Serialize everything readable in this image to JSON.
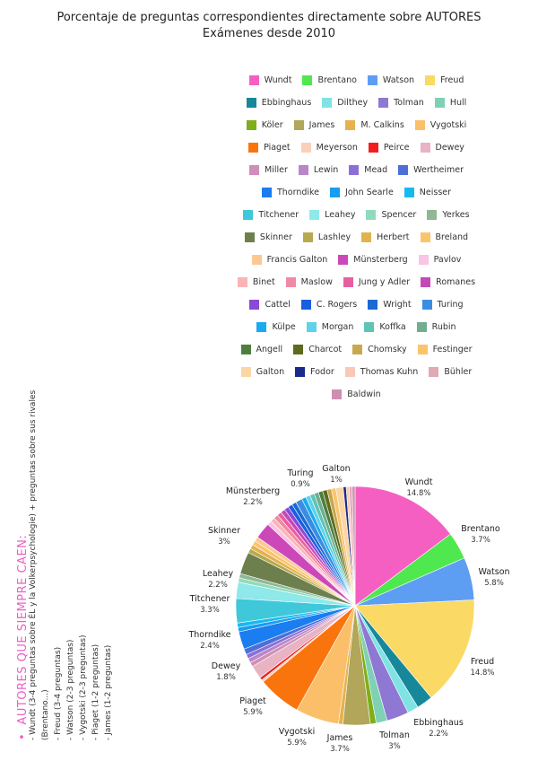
{
  "title": "Porcentaje de preguntas correspondientes directamente sobre AUTORES",
  "subtitle": "Exámenes desde 2010",
  "chart_data": {
    "type": "pie",
    "title": "Porcentaje de preguntas correspondientes directamente sobre AUTORES",
    "subtitle": "Exámenes desde 2010",
    "legend_position": "top-right",
    "slices": [
      {
        "name": "Wundt",
        "value": 14.8,
        "label": "14.8%",
        "color": "#f55fc2"
      },
      {
        "name": "Brentano",
        "value": 3.7,
        "label": "3.7%",
        "color": "#4fe84f"
      },
      {
        "name": "Watson",
        "value": 5.8,
        "label": "5.8%",
        "color": "#5e9ef2"
      },
      {
        "name": "Freud",
        "value": 14.8,
        "label": "14.8%",
        "color": "#fbd965"
      },
      {
        "name": "Ebbinghaus",
        "value": 2.2,
        "label": "2.2%",
        "color": "#17889a"
      },
      {
        "name": "Dilthey",
        "value": 1.5,
        "color": "#7fe3e3"
      },
      {
        "name": "Tolman",
        "value": 3.0,
        "label": "3%",
        "color": "#8f78d4"
      },
      {
        "name": "Hull",
        "value": 1.5,
        "color": "#7fd1b4"
      },
      {
        "name": "Köler",
        "value": 0.8,
        "color": "#7fae1a"
      },
      {
        "name": "James",
        "value": 3.7,
        "label": "3.7%",
        "color": "#b1a659"
      },
      {
        "name": "M. Calkins",
        "value": 0.6,
        "color": "#e5b24d"
      },
      {
        "name": "Vygotski",
        "value": 5.9,
        "label": "5.9%",
        "color": "#fbbf69"
      },
      {
        "name": "Piaget",
        "value": 5.9,
        "label": "5.9%",
        "color": "#fa740e"
      },
      {
        "name": "Meyerson",
        "value": 0.3,
        "color": "#fbcfb8"
      },
      {
        "name": "Peirce",
        "value": 0.4,
        "color": "#f21e1e"
      },
      {
        "name": "Dewey",
        "value": 1.8,
        "label": "1.8%",
        "color": "#e8b3c3"
      },
      {
        "name": "Miller",
        "value": 0.6,
        "color": "#d08fb8"
      },
      {
        "name": "Lewin",
        "value": 0.6,
        "color": "#b886c9"
      },
      {
        "name": "Mead",
        "value": 0.6,
        "color": "#8c6fd6"
      },
      {
        "name": "Wertheimer",
        "value": 0.8,
        "color": "#4c6fd8"
      },
      {
        "name": "Thorndike",
        "value": 2.4,
        "label": "2.4%",
        "color": "#1a7df0"
      },
      {
        "name": "John Searle",
        "value": 0.6,
        "color": "#1a9df0"
      },
      {
        "name": "Neisser",
        "value": 0.6,
        "color": "#17baf0"
      },
      {
        "name": "Titchener",
        "value": 3.3,
        "label": "3.3%",
        "color": "#3fc8d9"
      },
      {
        "name": "Leahey",
        "value": 2.2,
        "label": "2.2%",
        "color": "#8fe8ea"
      },
      {
        "name": "Spencer",
        "value": 0.6,
        "color": "#8fdcbc"
      },
      {
        "name": "Yerkes",
        "value": 0.6,
        "color": "#8fb893"
      },
      {
        "name": "Skinner",
        "value": 3.0,
        "label": "3%",
        "color": "#6e7f4e"
      },
      {
        "name": "Lashley",
        "value": 0.6,
        "color": "#b8a850"
      },
      {
        "name": "Herbert",
        "value": 0.6,
        "color": "#e2b24e"
      },
      {
        "name": "Breland",
        "value": 0.6,
        "color": "#fbc46b"
      },
      {
        "name": "Francis Galton",
        "value": 0.6,
        "color": "#fbc894"
      },
      {
        "name": "Münsterberg",
        "value": 2.2,
        "label": "2.2%",
        "color": "#cc48b8"
      },
      {
        "name": "Pavlov",
        "value": 0.6,
        "color": "#fbc3e6"
      },
      {
        "name": "Binet",
        "value": 0.6,
        "color": "#fbb4b4"
      },
      {
        "name": "Maslow",
        "value": 0.6,
        "color": "#f08aa4"
      },
      {
        "name": "Jung y Adler",
        "value": 0.6,
        "color": "#e85fa0"
      },
      {
        "name": "Romanes",
        "value": 0.6,
        "color": "#c449b8"
      },
      {
        "name": "Cattel",
        "value": 0.6,
        "color": "#8a4ad6"
      },
      {
        "name": "C. Rogers",
        "value": 0.6,
        "color": "#1a5ee0"
      },
      {
        "name": "Wright",
        "value": 0.6,
        "color": "#1a6ad4"
      },
      {
        "name": "Turing",
        "value": 0.9,
        "label": "0.9%",
        "color": "#3a8ee0"
      },
      {
        "name": "Külpe",
        "value": 0.6,
        "color": "#1aaaf0"
      },
      {
        "name": "Morgan",
        "value": 0.6,
        "color": "#5ed2e8"
      },
      {
        "name": "Koffka",
        "value": 0.6,
        "color": "#5ec4b4"
      },
      {
        "name": "Rubin",
        "value": 0.6,
        "color": "#6fae8f"
      },
      {
        "name": "Angell",
        "value": 0.6,
        "color": "#4e7e3e"
      },
      {
        "name": "Charcot",
        "value": 0.6,
        "color": "#5e6a1e"
      },
      {
        "name": "Chomsky",
        "value": 0.6,
        "color": "#c8a84e"
      },
      {
        "name": "Festinger",
        "value": 0.6,
        "color": "#fbc46b"
      },
      {
        "name": "Galton",
        "value": 1.0,
        "label": "1%",
        "color": "#fbd6a4"
      },
      {
        "name": "Fodor",
        "value": 0.4,
        "color": "#1a2a8a"
      },
      {
        "name": "Thomas Kuhn",
        "value": 0.4,
        "color": "#fbc8b8"
      },
      {
        "name": "Bühler",
        "value": 0.4,
        "color": "#dfaab4"
      },
      {
        "name": "Baldwin",
        "value": 0.4,
        "color": "#cf8fb0"
      }
    ]
  },
  "side_note": {
    "heading": "AUTORES QUE SIEMPRE CAEN:",
    "lines": [
      "- Wundt (3-4 preguntas sobre ÉL y la Volkerpsychologie) + preguntas sobre sus rivales",
      "(Brentano...)",
      "- Freud (3-4 preguntas)",
      "- Watson (2-3 preguntas)",
      "- Vygotski (2-3 preguntas)",
      "- Piaget (1-2 preguntas)",
      "- James (1-2 preguntas)"
    ]
  }
}
